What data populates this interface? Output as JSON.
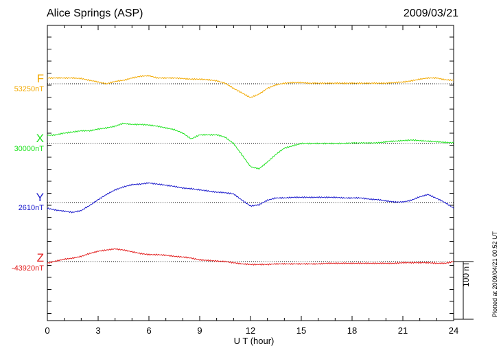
{
  "header": {
    "station": "Alice Springs (ASP)",
    "date": "2009/03/21"
  },
  "side": {
    "scale_label": "100 nT",
    "plotted_note": "Plotted at 2009/04/21 00:52 UT"
  },
  "colors": {
    "F": "#f2a900",
    "X": "#1ee21e",
    "Y": "#1a1acc",
    "Z": "#e21a1a"
  },
  "chart_data": {
    "type": "line",
    "title": "Alice Springs (ASP)",
    "xlabel": "U T (hour)",
    "xlim": [
      0,
      24
    ],
    "xticks": [
      "0",
      "3",
      "6",
      "9",
      "12",
      "15",
      "18",
      "21",
      "24"
    ],
    "scale_bar_nT": 100,
    "grid": "dotted baselines",
    "x": [
      0,
      0.5,
      1,
      1.5,
      2,
      2.5,
      3,
      3.5,
      4,
      4.5,
      5,
      5.5,
      6,
      6.5,
      7,
      7.5,
      8,
      8.5,
      9,
      9.5,
      10,
      10.5,
      11,
      11.5,
      12,
      12.5,
      13,
      13.5,
      14,
      14.5,
      15,
      15.5,
      16,
      16.5,
      17,
      17.5,
      18,
      18.5,
      19,
      19.5,
      20,
      20.5,
      21,
      21.5,
      22,
      22.5,
      23,
      23.5,
      24
    ],
    "series": [
      {
        "name": "F",
        "baseline_label": "53250nT",
        "values": [
          10,
          10,
          10,
          10,
          9,
          6,
          3,
          0,
          4,
          6,
          10,
          13,
          14,
          10,
          10,
          10,
          9,
          8,
          8,
          7,
          5,
          1,
          -8,
          -16,
          -24,
          -18,
          -8,
          -2,
          1,
          2,
          2,
          1,
          1,
          1,
          1,
          1,
          1,
          1,
          1,
          1,
          1,
          2,
          3,
          5,
          8,
          10,
          10,
          7,
          6
        ]
      },
      {
        "name": "X",
        "baseline_label": "30000nT",
        "values": [
          14,
          15,
          18,
          20,
          22,
          22,
          25,
          27,
          30,
          35,
          33,
          33,
          32,
          30,
          27,
          24,
          18,
          8,
          15,
          15,
          15,
          11,
          0,
          -20,
          -40,
          -44,
          -32,
          -19,
          -8,
          -4,
          0,
          0,
          0,
          0,
          0,
          0,
          1,
          1,
          1,
          1,
          3,
          4,
          5,
          6,
          5,
          4,
          3,
          2,
          1
        ]
      },
      {
        "name": "Y",
        "baseline_label": "2610nT",
        "values": [
          -10,
          -13,
          -15,
          -17,
          -14,
          -5,
          5,
          14,
          22,
          27,
          31,
          32,
          34,
          32,
          30,
          28,
          25,
          24,
          22,
          20,
          18,
          17,
          15,
          4,
          -6,
          -4,
          4,
          8,
          8,
          9,
          9,
          9,
          9,
          9,
          9,
          8,
          8,
          8,
          6,
          5,
          3,
          1,
          1,
          4,
          10,
          14,
          7,
          0,
          -10
        ]
      },
      {
        "name": "Z",
        "baseline_label": "-43920nT",
        "values": [
          -3,
          1,
          4,
          6,
          9,
          14,
          18,
          20,
          22,
          20,
          17,
          14,
          12,
          12,
          11,
          9,
          8,
          6,
          3,
          2,
          1,
          0,
          -2,
          -4,
          -5,
          -5,
          -5,
          -4,
          -4,
          -4,
          -4,
          -4,
          -4,
          -3,
          -3,
          -3,
          -3,
          -3,
          -3,
          -3,
          -3,
          -3,
          -2,
          -2,
          -2,
          -2,
          -3,
          -3,
          0
        ]
      }
    ]
  }
}
